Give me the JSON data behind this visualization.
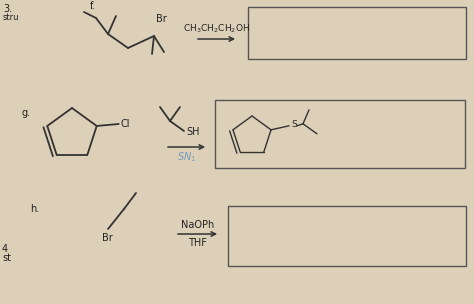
{
  "bg_color": "#ddd0b8",
  "text_color": "#222222",
  "line_color": "#333333",
  "label_f": "f.",
  "label_g": "g.",
  "label_h": "h.",
  "label_3": "3.",
  "label_stru": "stru",
  "label_4": "4",
  "label_st": "st",
  "reagent_f": "CH$_3$CH$_2$CH$_2$OH",
  "reagent_g_top": "SH",
  "reagent_g_bot": "SN$_1$",
  "reagent_h_top": "NaOPh",
  "reagent_h_bot": "THF",
  "br_label": "Br",
  "cl_label": "Cl",
  "br2_label": "Br",
  "s_label": "S"
}
